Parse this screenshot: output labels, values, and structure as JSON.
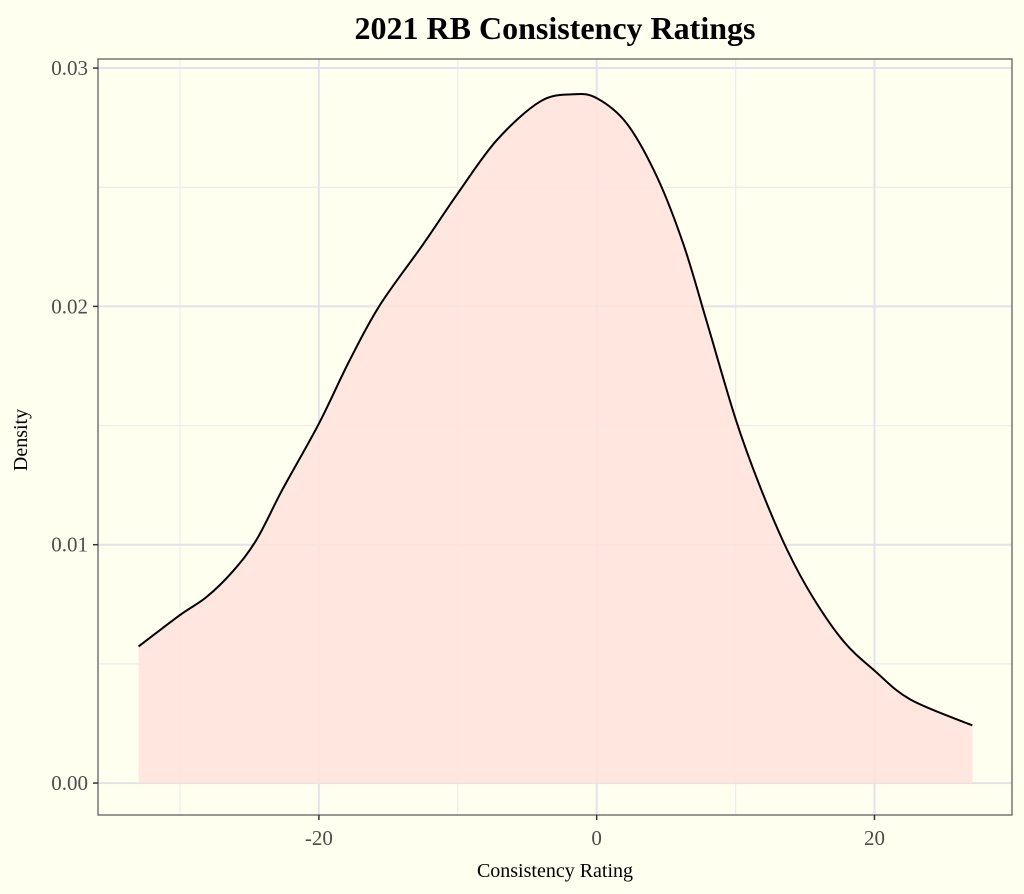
{
  "chart_data": {
    "type": "area",
    "title": "2021 RB Consistency Ratings",
    "xlabel": "Consistency Rating",
    "ylabel": "Density",
    "xlim": [
      -35.9,
      29.9
    ],
    "ylim": [
      -0.00134,
      0.03038
    ],
    "x_ticks": [
      -20,
      0,
      20
    ],
    "x_tick_labels": [
      "-20",
      "0",
      "20"
    ],
    "x_minor_ticks": [
      -30,
      -10,
      10
    ],
    "y_ticks": [
      0,
      0.01,
      0.02,
      0.03
    ],
    "y_tick_labels": [
      "0.00",
      "0.01",
      "0.02",
      "0.03"
    ],
    "y_minor_ticks": [
      0.005,
      0.015,
      0.025
    ],
    "grid": true,
    "legend": "none",
    "series": [
      {
        "name": "density",
        "x": [
          -32.98,
          -30,
          -28.1,
          -26.2,
          -24.5,
          -22.6,
          -20,
          -17.8,
          -15.6,
          -12.5,
          -10,
          -7.2,
          -4.06,
          -1.68,
          0,
          2.16,
          4.33,
          6.25,
          7.93,
          10,
          11.76,
          13.7,
          15.6,
          17.8,
          20,
          22.6,
          27.05
        ],
        "y": [
          0.00573,
          0.00705,
          0.0078,
          0.00888,
          0.0102,
          0.01234,
          0.01508,
          0.01772,
          0.02006,
          0.0226,
          0.02474,
          0.02697,
          0.0286,
          0.0289,
          0.02874,
          0.02768,
          0.02545,
          0.0226,
          0.01935,
          0.01528,
          0.01244,
          0.0098,
          0.00776,
          0.00593,
          0.00472,
          0.0035,
          0.00242
        ]
      }
    ],
    "colors": {
      "background": "#fffff0",
      "fill": "#ffe3dc",
      "line": "#000000",
      "grid_major": "#e4e1ec",
      "grid_minor": "#eeece9",
      "border": "#555555"
    }
  }
}
